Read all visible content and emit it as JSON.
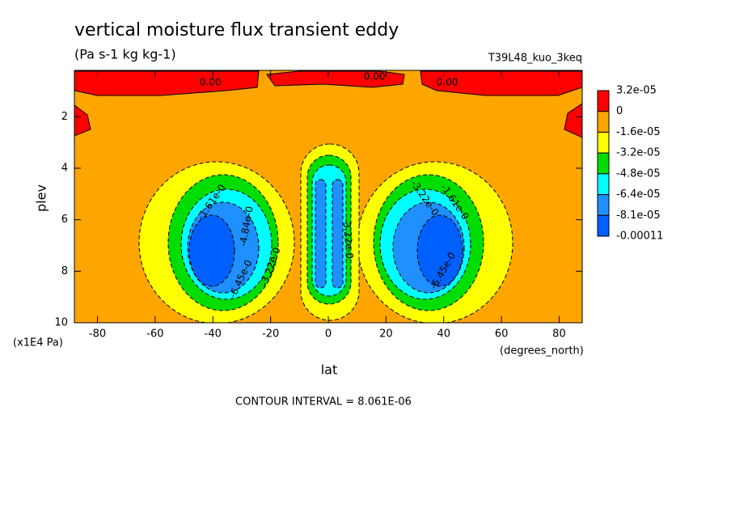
{
  "chart_data": {
    "type": "contour",
    "title": "vertical moisture flux transient eddy",
    "subtitle": "(Pa s-1 kg kg-1)",
    "dataset": "T39L48_kuo_3keq",
    "xlabel": "lat",
    "xunits": "(degrees_north)",
    "ylabel": "plev",
    "yunits": "(x1E4 Pa)",
    "footnote": "CONTOUR INTERVAL = 8.061E-06",
    "xlim": [
      -88,
      88
    ],
    "xticks": [
      -80,
      -60,
      -40,
      -20,
      0,
      20,
      40,
      60,
      80
    ],
    "ylim": [
      0.2,
      10
    ],
    "yticks": [
      2,
      4,
      6,
      8,
      10
    ],
    "levels": [
      {
        "value": 3.2e-05,
        "label": "3.2e-05"
      },
      0,
      {
        "value": -1.6e-05,
        "label": "-1.6e-05"
      },
      {
        "value": -3.2e-05,
        "label": "-3.2e-05"
      },
      {
        "value": -4.8e-05,
        "label": "-4.8e-05"
      },
      {
        "value": -6.4e-05,
        "label": "-6.4e-05"
      },
      {
        "value": -8.1e-05,
        "label": "-8.1e-05"
      },
      -0.00011
    ],
    "colors": [
      "#ff0000",
      "#ffa500",
      "#ffff00",
      "#00dd00",
      "#00ffff",
      "#1e90ff",
      "#0060ff"
    ],
    "contour_labels": [
      "0.00",
      "0.00",
      "0.00",
      "-1.61e-0",
      "-1.61e-0",
      "-3.22e-0",
      "-3.22e-0",
      "-6.45e-0",
      "-6.45e-0",
      "-4.84e-0",
      "-3.22e-0"
    ]
  }
}
